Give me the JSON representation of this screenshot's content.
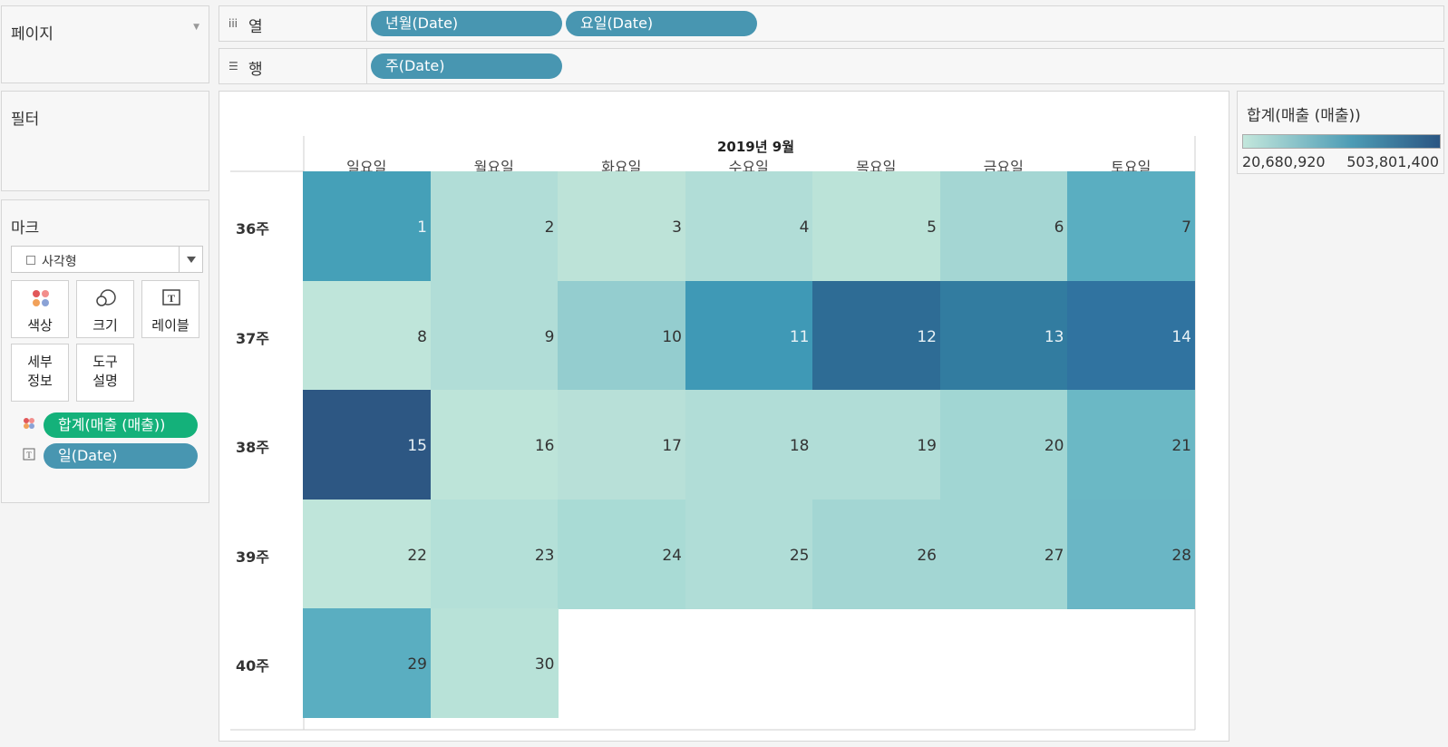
{
  "pages": {
    "title": "페이지"
  },
  "filters": {
    "title": "필터"
  },
  "marks": {
    "title": "마크",
    "mark_type": "사각형",
    "buttons": {
      "color": "색상",
      "size": "크기",
      "label": "레이블",
      "detail_line1": "세부",
      "detail_line2": "정보",
      "tooltip_line1": "도구",
      "tooltip_line2": "설명"
    },
    "fields": [
      {
        "role": "color",
        "label": "합계(매출 (매출))",
        "color": "#14b17a"
      },
      {
        "role": "label",
        "label": "일(Date)",
        "color": "#4896b1"
      }
    ]
  },
  "columns_shelf": {
    "label": "열",
    "pills": [
      "년월(Date)",
      "요일(Date)"
    ]
  },
  "rows_shelf": {
    "label": "행",
    "pills": [
      "주(Date)"
    ]
  },
  "legend": {
    "title": "합계(매출 (매출))",
    "min": "20,680,920",
    "max": "503,801,400",
    "color_low": "#c3e7dc",
    "color_high": "#2b5683"
  },
  "chart_data": {
    "type": "heatmap",
    "title": "2019년 9월",
    "columns": [
      "일요일",
      "월요일",
      "화요일",
      "수요일",
      "목요일",
      "금요일",
      "토요일"
    ],
    "rows": [
      "36주",
      "37주",
      "38주",
      "39주",
      "40주"
    ],
    "cells": [
      [
        {
          "day": "1",
          "color": "#45a0b8"
        },
        {
          "day": "2",
          "color": "#b1ddd7"
        },
        {
          "day": "3",
          "color": "#bde3d8"
        },
        {
          "day": "4",
          "color": "#b1ddd7"
        },
        {
          "day": "5",
          "color": "#bbe3d8"
        },
        {
          "day": "6",
          "color": "#a4d6d3"
        },
        {
          "day": "7",
          "color": "#5aaec1"
        }
      ],
      [
        {
          "day": "8",
          "color": "#bfe5da"
        },
        {
          "day": "9",
          "color": "#b1ddd7"
        },
        {
          "day": "10",
          "color": "#94cdcf"
        },
        {
          "day": "11",
          "color": "#3f99b6"
        },
        {
          "day": "12",
          "color": "#2e6c95"
        },
        {
          "day": "13",
          "color": "#327ca0"
        },
        {
          "day": "14",
          "color": "#3073a0"
        }
      ],
      [
        {
          "day": "15",
          "color": "#2d5783"
        },
        {
          "day": "16",
          "color": "#bde4d9"
        },
        {
          "day": "17",
          "color": "#b8e0d8"
        },
        {
          "day": "18",
          "color": "#b1ddd7"
        },
        {
          "day": "19",
          "color": "#b1ddd7"
        },
        {
          "day": "20",
          "color": "#a1d6d3"
        },
        {
          "day": "21",
          "color": "#6bb8c5"
        }
      ],
      [
        {
          "day": "22",
          "color": "#bfe5da"
        },
        {
          "day": "23",
          "color": "#b4e0d8"
        },
        {
          "day": "24",
          "color": "#a9dbd5"
        },
        {
          "day": "25",
          "color": "#b0ddd7"
        },
        {
          "day": "26",
          "color": "#a3d6d3"
        },
        {
          "day": "27",
          "color": "#a1d6d3"
        },
        {
          "day": "28",
          "color": "#6ab6c5"
        }
      ],
      [
        {
          "day": "29",
          "color": "#5aaec1"
        },
        {
          "day": "30",
          "color": "#b8e2d8"
        },
        null,
        null,
        null,
        null,
        null
      ]
    ]
  }
}
